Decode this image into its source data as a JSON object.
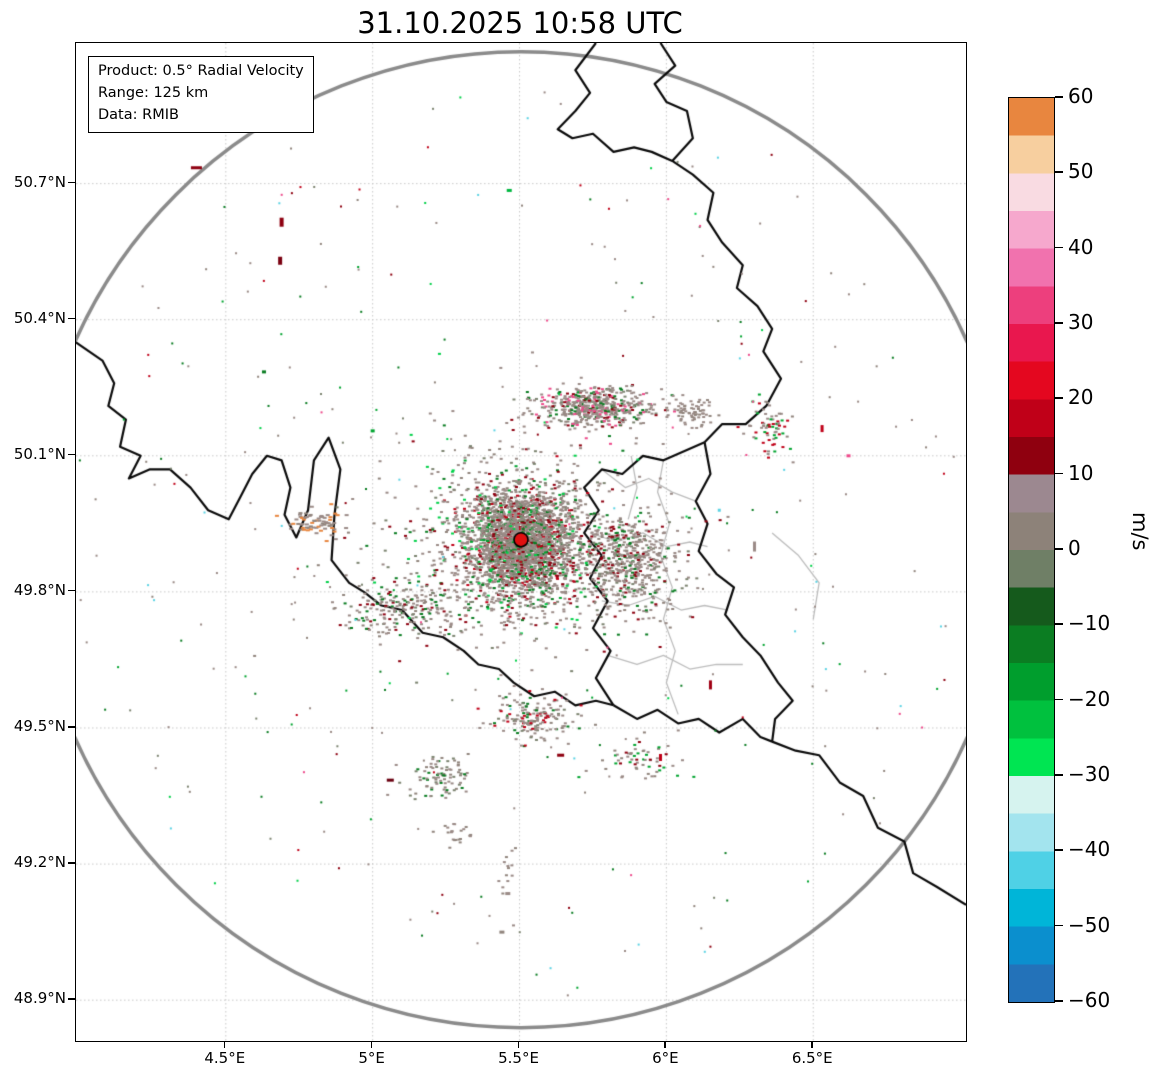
{
  "title": "31.10.2025 10:58 UTC",
  "info_box": {
    "product": "Product: 0.5° Radial Velocity",
    "range": "Range: 125 km",
    "data_source": "Data: RMIB"
  },
  "axes": {
    "x_tick_labels": [
      "4.5°E",
      "5°E",
      "5.5°E",
      "6°E",
      "6.5°E"
    ],
    "x_tick_lons": [
      4.5,
      5.0,
      5.5,
      6.0,
      6.5
    ],
    "y_tick_labels": [
      "50.7°N",
      "50.4°N",
      "50.1°N",
      "49.8°N",
      "49.5°N",
      "49.2°N",
      "48.9°N"
    ],
    "y_tick_lats": [
      50.7,
      50.4,
      50.1,
      49.8,
      49.5,
      49.2,
      48.9
    ]
  },
  "colorbar": {
    "label": "m/s",
    "min": -60,
    "max": 60,
    "tick_labels": [
      "60",
      "50",
      "40",
      "30",
      "20",
      "10",
      "0",
      "−10",
      "−20",
      "−30",
      "−40",
      "−50",
      "−60"
    ],
    "tick_values": [
      60,
      50,
      40,
      30,
      20,
      10,
      0,
      -10,
      -20,
      -30,
      -40,
      -50,
      -60
    ],
    "bands": [
      {
        "from": -60,
        "to": -55,
        "color": "#2372b9"
      },
      {
        "from": -55,
        "to": -50,
        "color": "#0b8fce"
      },
      {
        "from": -50,
        "to": -45,
        "color": "#00b5d8"
      },
      {
        "from": -45,
        "to": -40,
        "color": "#4fd1e6"
      },
      {
        "from": -40,
        "to": -35,
        "color": "#a3e4ee"
      },
      {
        "from": -35,
        "to": -30,
        "color": "#d6f3ef"
      },
      {
        "from": -30,
        "to": -25,
        "color": "#00e552"
      },
      {
        "from": -25,
        "to": -20,
        "color": "#00c13e"
      },
      {
        "from": -20,
        "to": -15,
        "color": "#009e2d"
      },
      {
        "from": -15,
        "to": -10,
        "color": "#0b7d22"
      },
      {
        "from": -10,
        "to": -5,
        "color": "#155a1c"
      },
      {
        "from": -5,
        "to": 0,
        "color": "#6f7f66"
      },
      {
        "from": 0,
        "to": 5,
        "color": "#8d8279"
      },
      {
        "from": 5,
        "to": 10,
        "color": "#9c8890"
      },
      {
        "from": 10,
        "to": 15,
        "color": "#8f000f"
      },
      {
        "from": 15,
        "to": 20,
        "color": "#c00018"
      },
      {
        "from": 20,
        "to": 25,
        "color": "#e4071f"
      },
      {
        "from": 25,
        "to": 30,
        "color": "#e9174e"
      },
      {
        "from": 30,
        "to": 35,
        "color": "#ed3f7d"
      },
      {
        "from": 35,
        "to": 40,
        "color": "#f172ae"
      },
      {
        "from": 40,
        "to": 45,
        "color": "#f6a8cd"
      },
      {
        "from": 45,
        "to": 50,
        "color": "#f9dbe2"
      },
      {
        "from": 50,
        "to": 55,
        "color": "#f7cf9f"
      },
      {
        "from": 55,
        "to": 60,
        "color": "#e8863f"
      }
    ]
  },
  "chart_data": {
    "type": "heatmap",
    "subtype": "radar-ppi-radial-velocity",
    "title": "31.10.2025 10:58 UTC",
    "product": "0.5° Radial Velocity",
    "range_km": 125,
    "source": "RMIB",
    "units": "m/s",
    "value_range": [
      -60,
      60
    ],
    "lon_range": [
      3.99,
      7.02
    ],
    "lat_range": [
      48.81,
      51.01
    ],
    "grid": "dashed",
    "legend_position": "right-colorbar",
    "radar_site": {
      "lon": 5.505,
      "lat": 49.915
    },
    "echo_clusters": [
      {
        "lon": 5.5,
        "lat": 49.91,
        "slon": 0.095,
        "slat": 0.06,
        "n": 2600,
        "px": [
          3,
          2
        ],
        "colors": [
          "#9b8b87",
          "#9b8b87",
          "#9b8b87",
          "#91857d",
          "#9b8b87",
          "#7c8470",
          "#9b8b87",
          "#0a7d22",
          "#9b8b87",
          "#8e0010",
          "#91857d",
          "#00a42f",
          "#9b8b87",
          "#c00018",
          "#7c8470",
          "#9b8b87"
        ]
      },
      {
        "lon": 5.5,
        "lat": 49.9,
        "slon": 0.22,
        "slat": 0.115,
        "n": 800,
        "px": [
          3,
          2
        ],
        "colors": [
          "#9b8b87",
          "#9b8b87",
          "#91857d",
          "#7c8470",
          "#0a7d22",
          "#9b8b87",
          "#8e0010",
          "#9b8b87",
          "#00d148",
          "#9b8b87"
        ]
      },
      {
        "lon": 5.86,
        "lat": 49.87,
        "slon": 0.085,
        "slat": 0.055,
        "n": 520,
        "px": [
          3,
          2
        ],
        "colors": [
          "#9b8b87",
          "#9b8b87",
          "#91857d",
          "#9b8b87",
          "#7c8470",
          "#0a7d22",
          "#9b8b87",
          "#8e0010",
          "#9b8b87"
        ]
      },
      {
        "lon": 5.75,
        "lat": 50.21,
        "slon": 0.1,
        "slat": 0.022,
        "n": 550,
        "px": [
          3,
          2
        ],
        "colors": [
          "#9b8b87",
          "#9b8b87",
          "#91857d",
          "#9b8b87",
          "#9b8b87",
          "#7c8470",
          "#8e0010",
          "#9b8b87",
          "#0a7d22",
          "#ee4a8b"
        ]
      },
      {
        "lon": 6.08,
        "lat": 50.2,
        "slon": 0.045,
        "slat": 0.018,
        "n": 70,
        "px": [
          3,
          2
        ],
        "colors": [
          "#9b8b87",
          "#91857d",
          "#9b8b87"
        ]
      },
      {
        "lon": 6.34,
        "lat": 50.16,
        "slon": 0.035,
        "slat": 0.028,
        "n": 70,
        "px": [
          3,
          2
        ],
        "colors": [
          "#9b8b87",
          "#91857d",
          "#9b8b87",
          "#00a42f",
          "#c00018"
        ]
      },
      {
        "lon": 4.8,
        "lat": 49.955,
        "slon": 0.045,
        "slat": 0.016,
        "n": 70,
        "px": [
          4,
          2
        ],
        "colors": [
          "#9b8b87",
          "#91857d",
          "#9b8b87",
          "#e8863f"
        ]
      },
      {
        "lon": 5.11,
        "lat": 49.765,
        "slon": 0.115,
        "slat": 0.03,
        "n": 230,
        "px": [
          3,
          2
        ],
        "colors": [
          "#9b8b87",
          "#9b8b87",
          "#91857d",
          "#7c8470",
          "#9b8b87",
          "#0a7d22",
          "#8e0010",
          "#9b8b87"
        ]
      },
      {
        "lon": 5.55,
        "lat": 49.525,
        "slon": 0.075,
        "slat": 0.026,
        "n": 170,
        "px": [
          3,
          2
        ],
        "colors": [
          "#9b8b87",
          "#9b8b87",
          "#91857d",
          "#9b8b87",
          "#7c8470",
          "#0a7d22",
          "#9b8b87",
          "#c00018"
        ]
      },
      {
        "lon": 5.9,
        "lat": 49.43,
        "slon": 0.07,
        "slat": 0.024,
        "n": 60,
        "px": [
          3,
          2
        ],
        "colors": [
          "#9b8b87",
          "#91857d",
          "#9b8b87",
          "#00a42f",
          "#8e0010"
        ]
      },
      {
        "lon": 5.22,
        "lat": 49.39,
        "slon": 0.055,
        "slat": 0.028,
        "n": 90,
        "px": [
          3,
          2
        ],
        "colors": [
          "#9b8b87",
          "#91857d",
          "#9b8b87",
          "#7c8470",
          "#0a7d22"
        ]
      },
      {
        "lon": 5.28,
        "lat": 49.265,
        "slon": 0.03,
        "slat": 0.015,
        "n": 22,
        "px": [
          3,
          2
        ],
        "colors": [
          "#9b8b87",
          "#91857d"
        ]
      },
      {
        "lon": 5.455,
        "lat": 49.175,
        "slon": 0.015,
        "slat": 0.04,
        "n": 14,
        "px": [
          3,
          2
        ],
        "colors": [
          "#9b8b87",
          "#91857d"
        ]
      },
      {
        "lon": 0,
        "lat": 0,
        "uniform": true,
        "radius": 1.02,
        "n": 330,
        "px": [
          2,
          2
        ],
        "colors": [
          "#9b8b87",
          "#0a7d22",
          "#9b8b87",
          "#8e0010",
          "#91857d",
          "#00a42f",
          "#7c8470",
          "#c00018",
          "#9b8b87",
          "#00d148",
          "#9b8b87",
          "#5bd3e4",
          "#91857d",
          "#ee4a8b",
          "#0a7d22",
          "#9b8b87"
        ]
      }
    ],
    "isolated_echoes": [
      {
        "lon": 4.4,
        "lat": 50.735,
        "color": "#8e0010",
        "w": 11,
        "h": 3
      },
      {
        "lon": 4.69,
        "lat": 50.615,
        "color": "#8e0010",
        "w": 4,
        "h": 9
      },
      {
        "lon": 4.685,
        "lat": 50.53,
        "color": "#7a0010",
        "w": 4,
        "h": 8
      },
      {
        "lon": 5.465,
        "lat": 50.685,
        "color": "#00b840",
        "w": 5,
        "h": 3
      },
      {
        "lon": 6.53,
        "lat": 50.16,
        "color": "#c00018",
        "w": 3,
        "h": 7
      },
      {
        "lon": 6.62,
        "lat": 50.1,
        "color": "#ee4a8b",
        "w": 4,
        "h": 3
      },
      {
        "lon": 6.3,
        "lat": 49.9,
        "color": "#9b8b87",
        "w": 3,
        "h": 10
      },
      {
        "lon": 6.15,
        "lat": 49.595,
        "color": "#a00014",
        "w": 3,
        "h": 9
      },
      {
        "lon": 5.98,
        "lat": 49.435,
        "color": "#c00018",
        "w": 3,
        "h": 7
      },
      {
        "lon": 5.64,
        "lat": 49.44,
        "color": "#8e0010",
        "w": 7,
        "h": 3
      },
      {
        "lon": 5.06,
        "lat": 49.385,
        "color": "#6a0010",
        "w": 7,
        "h": 3
      },
      {
        "lon": 5.46,
        "lat": 49.135,
        "color": "#9b8b87",
        "w": 5,
        "h": 3
      },
      {
        "lon": 5.44,
        "lat": 49.05,
        "color": "#91857d",
        "w": 5,
        "h": 3
      },
      {
        "lon": 6.18,
        "lat": 49.98,
        "color": "#5bd3e4",
        "w": 3,
        "h": 3
      },
      {
        "lon": 4.63,
        "lat": 50.285,
        "color": "#0a7d22",
        "w": 4,
        "h": 3
      },
      {
        "lon": 5.0,
        "lat": 50.155,
        "color": "#00a42f",
        "w": 4,
        "h": 3
      }
    ],
    "range_circle_color": "#8b8b8b",
    "border_color": "#0a0a0a",
    "subborder_color": "#bdbdbd",
    "radar_dot_color": "#e01010"
  }
}
